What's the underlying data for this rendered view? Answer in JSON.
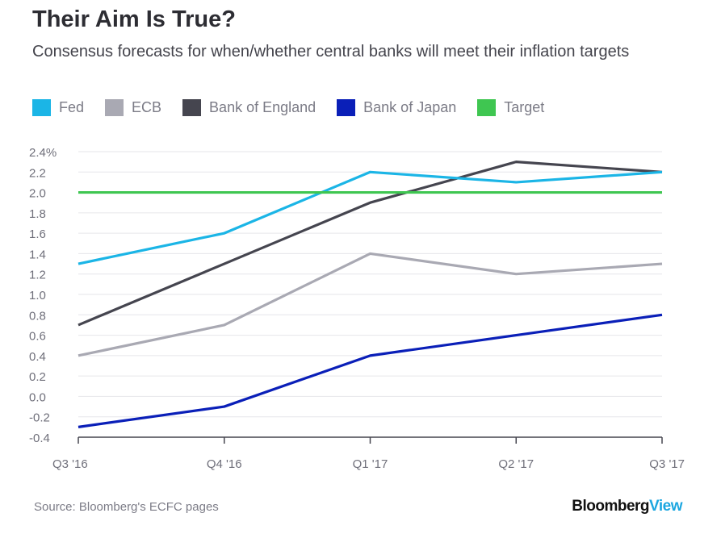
{
  "header": {
    "title": "Their Aim Is True?",
    "subtitle": "Consensus forecasts for when/whether central banks will meet their inflation targets"
  },
  "legend": [
    {
      "label": "Fed",
      "color": "#1bb5e6"
    },
    {
      "label": "ECB",
      "color": "#a9a9b3"
    },
    {
      "label": "Bank of England",
      "color": "#45454f"
    },
    {
      "label": "Bank of Japan",
      "color": "#0a1fb8"
    },
    {
      "label": "Target",
      "color": "#3fc651"
    }
  ],
  "chart_data": {
    "type": "line",
    "title": "Their Aim Is True?",
    "subtitle": "Consensus forecasts for when/whether central banks will meet their inflation targets",
    "categories": [
      "Q3 '16",
      "Q4 '16",
      "Q1 '17",
      "Q2 '17",
      "Q3 '17"
    ],
    "ylim": [
      -0.4,
      2.4
    ],
    "yticks": [
      -0.4,
      -0.2,
      0.0,
      0.2,
      0.4,
      0.6,
      0.8,
      1.0,
      1.2,
      1.4,
      1.6,
      1.8,
      2.0,
      2.2,
      2.4
    ],
    "ytick_labels": [
      "-0.4",
      "-0.2",
      "0.0",
      "0.2",
      "0.4",
      "0.6",
      "0.8",
      "1.0",
      "1.2",
      "1.4",
      "1.6",
      "1.8",
      "2.0",
      "2.2",
      "2.4%"
    ],
    "grid": true,
    "series": [
      {
        "name": "Fed",
        "color": "#1bb5e6",
        "values": [
          1.3,
          1.6,
          2.2,
          2.1,
          2.2
        ]
      },
      {
        "name": "ECB",
        "color": "#a9a9b3",
        "values": [
          0.4,
          0.7,
          1.4,
          1.2,
          1.3
        ]
      },
      {
        "name": "Bank of England",
        "color": "#45454f",
        "values": [
          0.7,
          1.3,
          1.9,
          2.3,
          2.2
        ]
      },
      {
        "name": "Bank of Japan",
        "color": "#0a1fb8",
        "values": [
          -0.3,
          -0.1,
          0.4,
          0.6,
          0.8
        ]
      },
      {
        "name": "Target",
        "color": "#3fc651",
        "values": [
          2.0,
          2.0,
          2.0,
          2.0,
          2.0
        ]
      }
    ]
  },
  "footer": {
    "source": "Source: Bloomberg's ECFC pages",
    "brand_part1": "Bloomberg",
    "brand_part2": "View"
  }
}
